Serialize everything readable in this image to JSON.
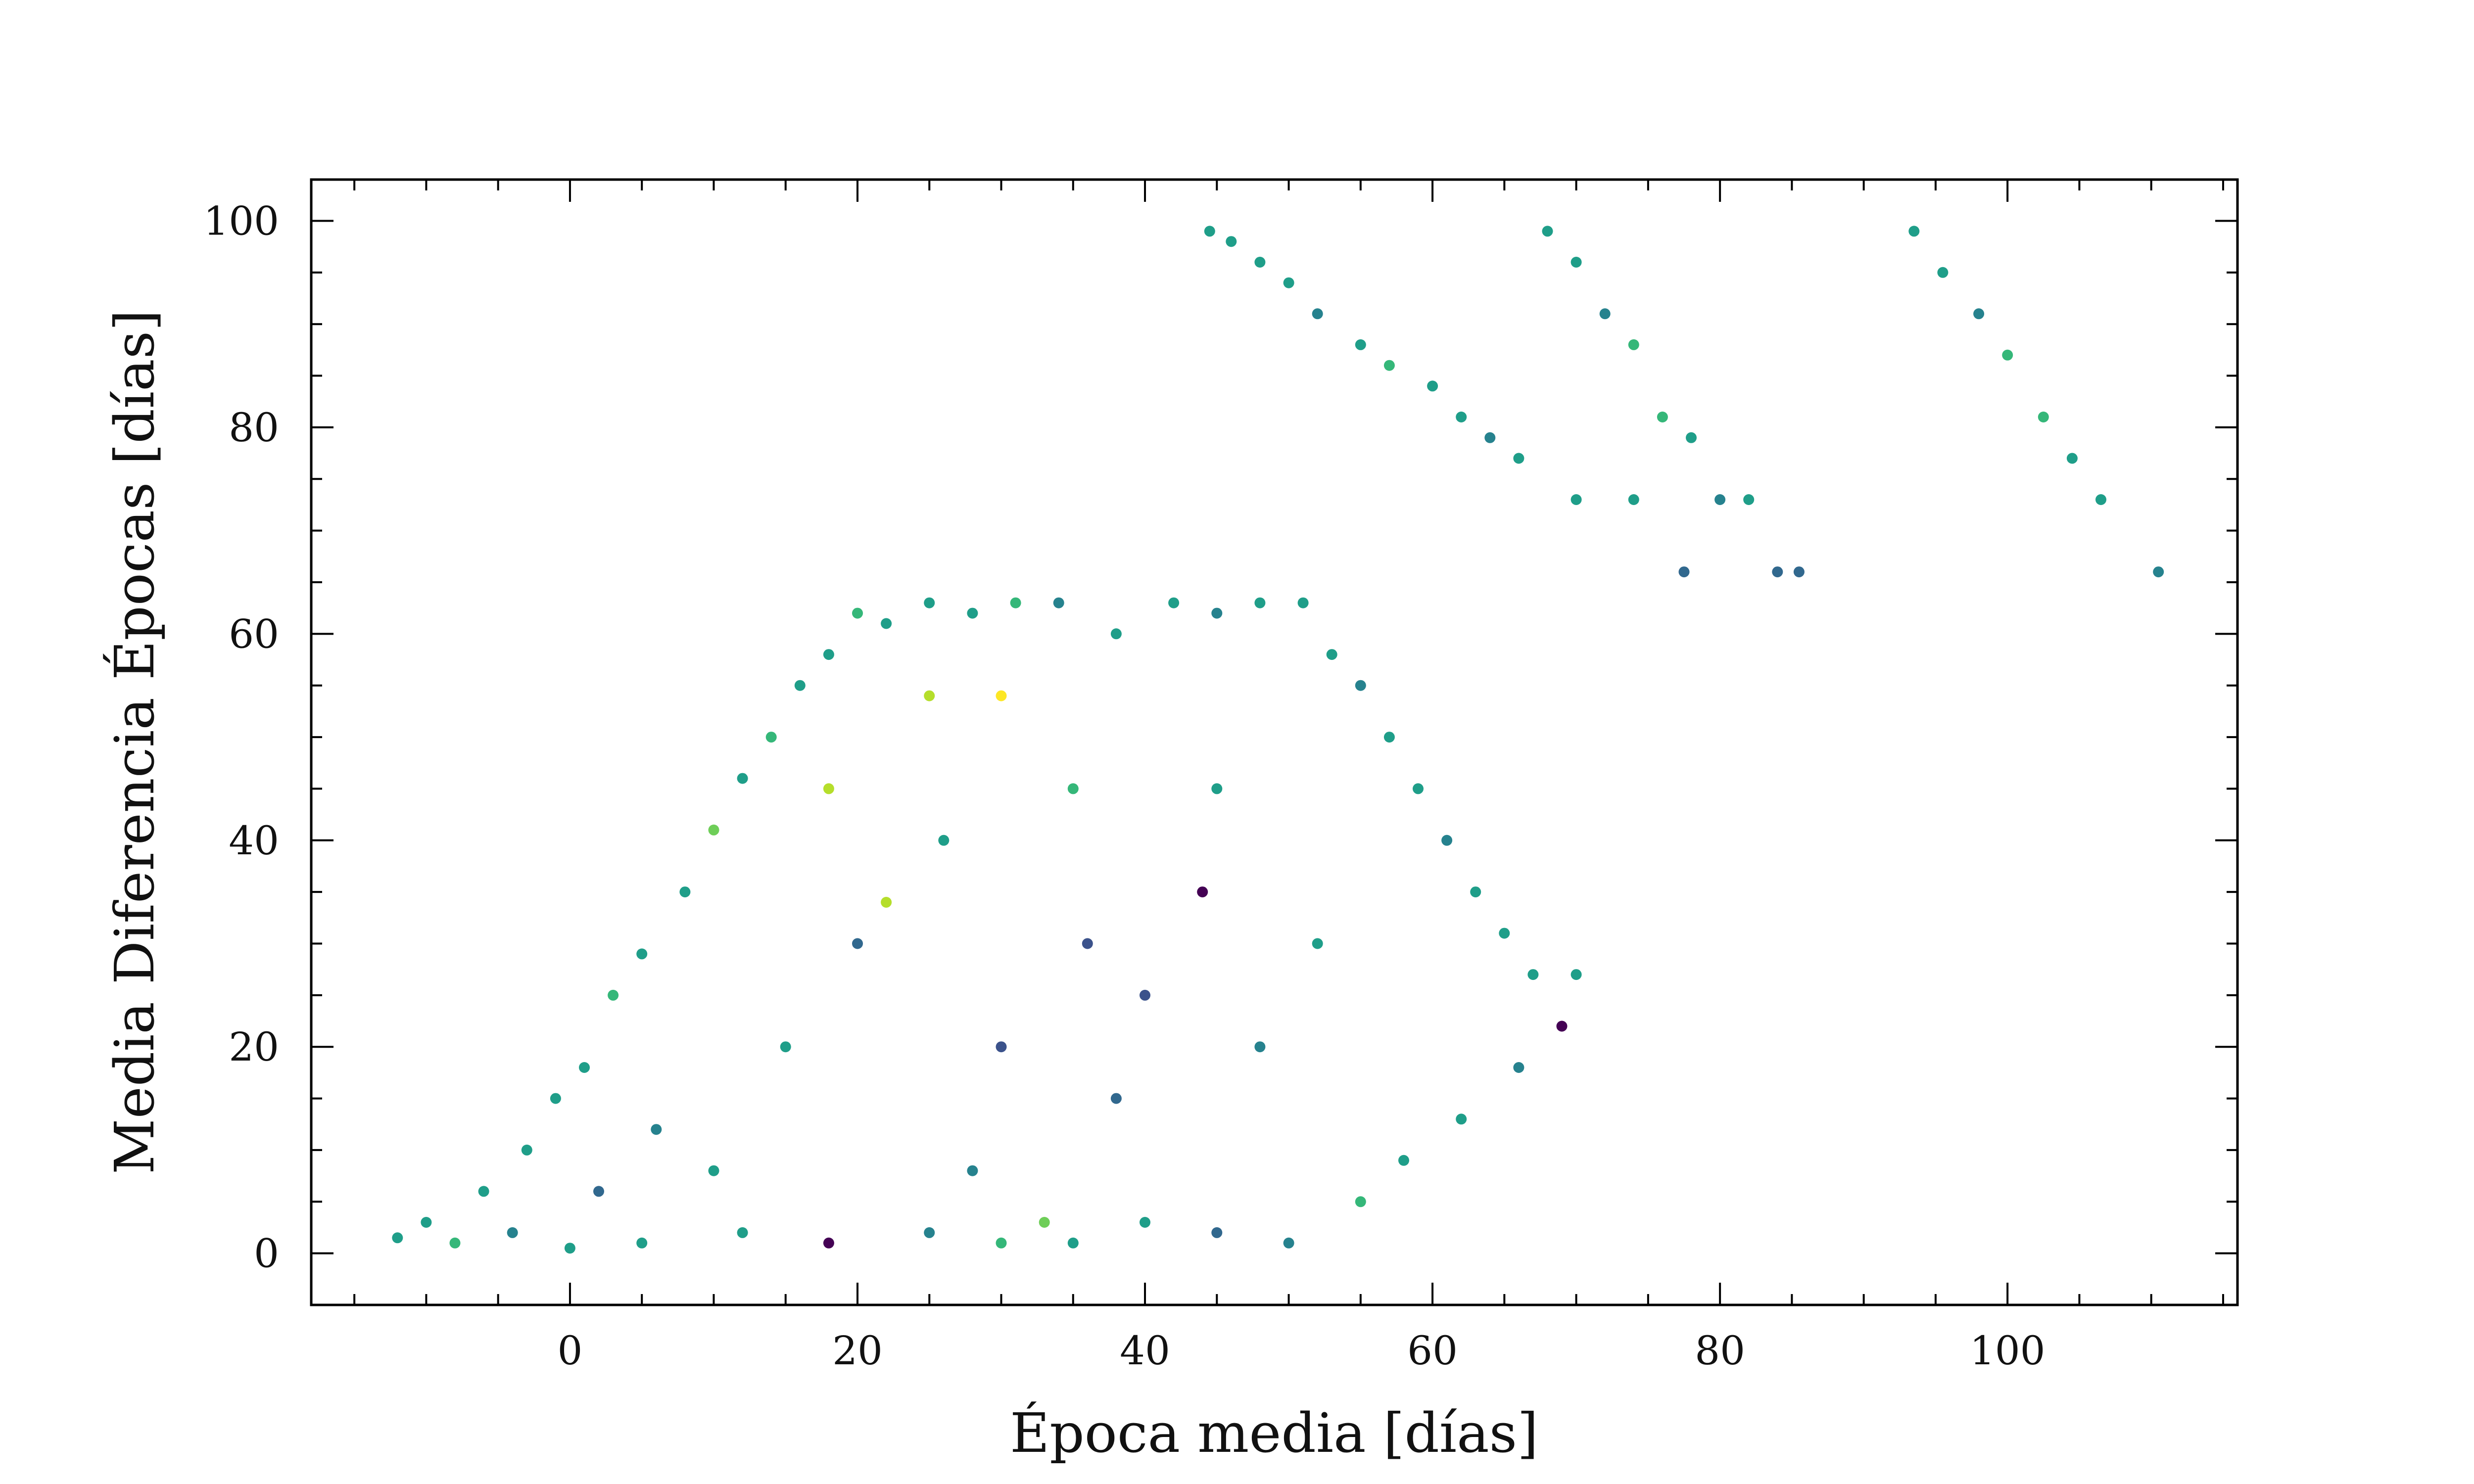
{
  "chart_data": {
    "type": "scatter",
    "title": "",
    "xlabel": "Época media [días]",
    "ylabel": "Media Diferencia Épocas [días]",
    "xlim": [
      -18,
      116
    ],
    "ylim": [
      -5,
      104
    ],
    "x_ticks": [
      0,
      20,
      40,
      60,
      80,
      100
    ],
    "y_ticks": [
      0,
      20,
      40,
      60,
      80,
      100
    ],
    "grid": false,
    "colormap": "viridis",
    "colors": [
      "#440154",
      "#3b528b",
      "#31688e",
      "#26828e",
      "#1f9e89",
      "#35b779",
      "#6ece58",
      "#b5de2b",
      "#fde725"
    ],
    "dominant_color": "#26828e",
    "points_lower_cluster": [
      [
        -12,
        1.5,
        0.5
      ],
      [
        -10,
        3,
        0.5
      ],
      [
        -8,
        1,
        0.6
      ],
      [
        -6,
        6,
        0.5
      ],
      [
        -4,
        2,
        0.4
      ],
      [
        -3,
        10,
        0.5
      ],
      [
        -1,
        15,
        0.5
      ],
      [
        0,
        0.5,
        0.5
      ],
      [
        1,
        18,
        0.5
      ],
      [
        2,
        6,
        0.3
      ],
      [
        3,
        25,
        0.6
      ],
      [
        5,
        29,
        0.5
      ],
      [
        6,
        12,
        0.4
      ],
      [
        8,
        35,
        0.5
      ],
      [
        10,
        41,
        0.7
      ],
      [
        12,
        46,
        0.5
      ],
      [
        14,
        50,
        0.6
      ],
      [
        16,
        55,
        0.5
      ],
      [
        18,
        58,
        0.5
      ],
      [
        20,
        62,
        0.6
      ],
      [
        22,
        61,
        0.5
      ],
      [
        25,
        63,
        0.5
      ],
      [
        28,
        62,
        0.5
      ],
      [
        31,
        63,
        0.6
      ],
      [
        34,
        63,
        0.4
      ],
      [
        38,
        60,
        0.5
      ],
      [
        42,
        63,
        0.5
      ],
      [
        45,
        62,
        0.4
      ],
      [
        48,
        63,
        0.5
      ],
      [
        51,
        63,
        0.5
      ],
      [
        53,
        58,
        0.5
      ],
      [
        55,
        55,
        0.4
      ],
      [
        57,
        50,
        0.5
      ],
      [
        59,
        45,
        0.5
      ],
      [
        61,
        40,
        0.4
      ],
      [
        63,
        35,
        0.5
      ],
      [
        65,
        31,
        0.5
      ],
      [
        67,
        27,
        0.5
      ],
      [
        69,
        22,
        0.0
      ],
      [
        70,
        27,
        0.5
      ],
      [
        66,
        18,
        0.4
      ],
      [
        62,
        13,
        0.5
      ],
      [
        58,
        9,
        0.5
      ],
      [
        55,
        5,
        0.6
      ],
      [
        50,
        1,
        0.4
      ],
      [
        45,
        2,
        0.3
      ],
      [
        40,
        3,
        0.5
      ],
      [
        35,
        1,
        0.5
      ],
      [
        33,
        3,
        0.8
      ],
      [
        30,
        1,
        0.6
      ],
      [
        25,
        2,
        0.4
      ],
      [
        18,
        1,
        0.0
      ],
      [
        12,
        2,
        0.5
      ],
      [
        5,
        1,
        0.5
      ],
      [
        20,
        30,
        0.3
      ],
      [
        30,
        20,
        0.1
      ],
      [
        40,
        25,
        0.1
      ],
      [
        44,
        35,
        0.0
      ],
      [
        35,
        45,
        0.6
      ],
      [
        25,
        54,
        0.9
      ],
      [
        30,
        54,
        1.0
      ],
      [
        22,
        34,
        0.9
      ],
      [
        15,
        20,
        0.5
      ],
      [
        10,
        8,
        0.5
      ],
      [
        28,
        8,
        0.4
      ],
      [
        38,
        15,
        0.2
      ],
      [
        48,
        20,
        0.4
      ],
      [
        52,
        30,
        0.5
      ],
      [
        45,
        45,
        0.5
      ],
      [
        36,
        30,
        0.1
      ],
      [
        26,
        40,
        0.5
      ],
      [
        18,
        45,
        0.9
      ]
    ],
    "points_upper_cluster": [
      [
        44.5,
        99,
        0.5
      ],
      [
        46,
        98,
        0.5
      ],
      [
        48,
        96,
        0.5
      ],
      [
        50,
        94,
        0.5
      ],
      [
        52,
        91,
        0.4
      ],
      [
        55,
        88,
        0.5
      ],
      [
        57,
        86,
        0.6
      ],
      [
        60,
        84,
        0.5
      ],
      [
        62,
        81,
        0.5
      ],
      [
        64,
        79,
        0.4
      ],
      [
        66,
        77,
        0.5
      ],
      [
        68,
        99,
        0.5
      ],
      [
        70,
        96,
        0.5
      ],
      [
        72,
        91,
        0.4
      ],
      [
        74,
        88,
        0.6
      ],
      [
        76,
        81,
        0.6
      ],
      [
        78,
        79,
        0.5
      ],
      [
        80,
        73,
        0.4
      ],
      [
        82,
        73,
        0.5
      ],
      [
        77.5,
        66,
        0.3
      ],
      [
        84,
        66,
        0.3
      ],
      [
        85.5,
        66,
        0.3
      ],
      [
        70,
        73,
        0.5
      ],
      [
        74,
        73,
        0.5
      ],
      [
        93.5,
        99,
        0.5
      ],
      [
        95.5,
        95,
        0.5
      ],
      [
        98,
        91,
        0.4
      ],
      [
        100,
        87,
        0.6
      ],
      [
        102.5,
        81,
        0.6
      ],
      [
        104.5,
        77,
        0.5
      ],
      [
        106.5,
        73,
        0.5
      ],
      [
        110.5,
        66,
        0.4
      ]
    ]
  }
}
